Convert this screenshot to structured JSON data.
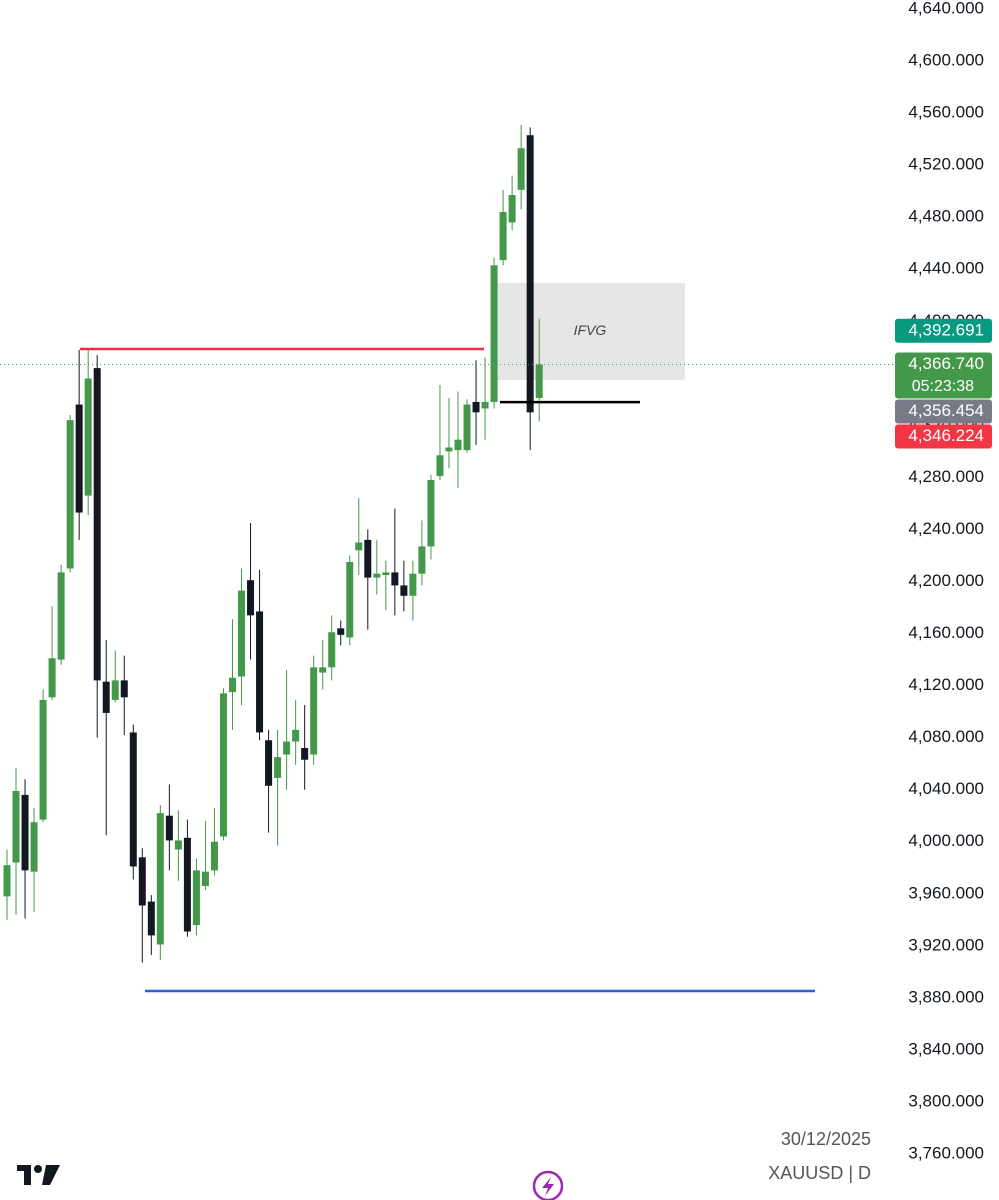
{
  "chart_data": {
    "type": "candlestick",
    "symbol_label": "XAUUSD | D",
    "date": "30/12/2025",
    "up_color": "#43984a",
    "down_color": "#131722",
    "open": [
      3958,
      3984,
      4036,
      3977,
      4017,
      4111,
      4140,
      4210,
      4336,
      4266,
      4364,
      4123,
      4109,
      4124,
      4084,
      3988,
      3954,
      3921,
      4020,
      3994,
      4003,
      3936,
      3966,
      3978,
      4004,
      4115,
      4127,
      4201,
      4177,
      4078,
      4049,
      4067,
      4077,
      4072,
      4067,
      4130,
      4134,
      4164,
      4157,
      4224,
      4232,
      4203,
      4205,
      4207,
      4197,
      4189,
      4206,
      4227,
      4281,
      4300,
      4301,
      4301,
      4338,
      4333,
      4338,
      4447,
      4476,
      4501,
      4543,
      4341
    ],
    "high": [
      3994,
      4057,
      4048,
      4026,
      4117,
      4181,
      4213,
      4328,
      4378,
      4378,
      4374,
      4155,
      4147,
      4143,
      4090,
      3995,
      3959,
      4028,
      4044,
      4024,
      4017,
      3987,
      4016,
      4026,
      4118,
      4171,
      4210,
      4245,
      4209,
      4086,
      4086,
      4132,
      4109,
      4105,
      4143,
      4155,
      4174,
      4170,
      4220,
      4264,
      4240,
      4232,
      4216,
      4256,
      4216,
      4216,
      4247,
      4282,
      4351,
      4341,
      4346,
      4340,
      4370,
      4372,
      4449,
      4501,
      4512,
      4551,
      4549,
      4402
    ],
    "low": [
      3940,
      3944,
      3941,
      3946,
      4015,
      4109,
      4136,
      4207,
      4232,
      4251,
      4080,
      4005,
      4107,
      4082,
      3971,
      3907,
      3913,
      3909,
      3978,
      3970,
      3927,
      3928,
      3963,
      3974,
      4001,
      4086,
      4105,
      4140,
      4078,
      4007,
      3997,
      4040,
      4059,
      4040,
      4059,
      4117,
      4124,
      4151,
      4151,
      4205,
      4163,
      4190,
      4178,
      4174,
      4177,
      4170,
      4197,
      4217,
      4278,
      4287,
      4272,
      4299,
      4305,
      4309,
      4333,
      4443,
      4470,
      4486,
      4301,
      4323
    ],
    "close": [
      3982,
      4039,
      3978,
      4015,
      4109,
      4141,
      4207,
      4324,
      4253,
      4356,
      4124,
      4099,
      4124,
      4111,
      3981,
      3951,
      3928,
      4022,
      4001,
      4001,
      3931,
      3978,
      3977,
      4000,
      4114,
      4126,
      4193,
      4174,
      4084,
      4043,
      4065,
      4077,
      4086,
      4063,
      4134,
      4134,
      4161,
      4159,
      4215,
      4230,
      4203,
      4206,
      4207,
      4197,
      4189,
      4206,
      4227,
      4278,
      4297,
      4303,
      4309,
      4336,
      4330,
      4338,
      4443,
      4484,
      4497,
      4533,
      4330,
      4366.74
    ],
    "ylim": [
      3760,
      4640
    ],
    "yticks": [
      {
        "value": 3760,
        "label": "3,760.000"
      },
      {
        "value": 3800,
        "label": "3,800.000"
      },
      {
        "value": 3840,
        "label": "3,840.000"
      },
      {
        "value": 3880,
        "label": "3,880.000"
      },
      {
        "value": 3920,
        "label": "3,920.000"
      },
      {
        "value": 3960,
        "label": "3,960.000"
      },
      {
        "value": 4000,
        "label": "4,000.000"
      },
      {
        "value": 4040,
        "label": "4,040.000"
      },
      {
        "value": 4080,
        "label": "4,080.000"
      },
      {
        "value": 4120,
        "label": "4,120.000"
      },
      {
        "value": 4160,
        "label": "4,160.000"
      },
      {
        "value": 4200,
        "label": "4,200.000"
      },
      {
        "value": 4240,
        "label": "4,240.000"
      },
      {
        "value": 4280,
        "label": "4,280.000"
      },
      {
        "value": 4320,
        "label": "4,320.000"
      },
      {
        "value": 4360,
        "label": "4,360.000"
      },
      {
        "value": 4400,
        "label": "4,400.000"
      },
      {
        "value": 4440,
        "label": "4,440.000"
      },
      {
        "value": 4480,
        "label": "4,480.000"
      },
      {
        "value": 4520,
        "label": "4,520.000"
      },
      {
        "value": 4560,
        "label": "4,560.000"
      },
      {
        "value": 4600,
        "label": "4,600.000"
      },
      {
        "value": 4640,
        "label": "4,640.000"
      }
    ],
    "levels": [
      {
        "value": 4378.7,
        "color": "#e5304a"
      },
      {
        "value": 3885.3,
        "color": "#2f5fd0"
      },
      {
        "value": 4337.9,
        "color": "#000000"
      }
    ],
    "zone": {
      "label": "IFVG",
      "top": 4429.4,
      "bottom": 4354.9
    },
    "price_tags": [
      {
        "value": 4392.691,
        "label": "4,392.691",
        "color": "#089981"
      },
      {
        "value": 4366.74,
        "label": "4,366.740",
        "color": "#43984a",
        "countdown": "05:23:38"
      },
      {
        "value": 4356.454,
        "label": "4,356.454",
        "color": "#787b86"
      },
      {
        "value": 4346.224,
        "label": "4,346.224",
        "color": "#f23645"
      }
    ]
  }
}
